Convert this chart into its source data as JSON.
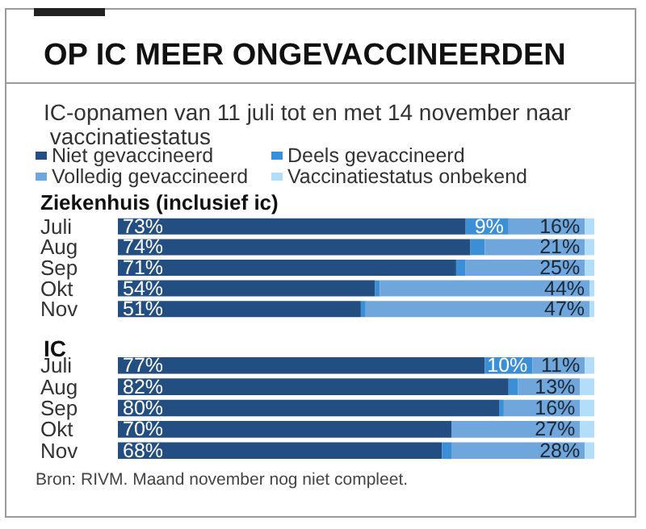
{
  "chart_data": [
    {
      "type": "bar",
      "title": "OP IC MEER ONGEVACCINEERDEN",
      "subtitle": "IC-opnamen van 11 juli tot en met 14 november naar vaccinatiestatus",
      "annotations": [
        "Ziekenhuis (inclusief ic)"
      ],
      "orientation": "horizontal",
      "stacked": true,
      "xlim": [
        0,
        100
      ],
      "tick_labels": "y",
      "grid": false,
      "legend": "top left",
      "categories": [
        "Juli",
        "Aug",
        "Sep",
        "Okt",
        "Nov"
      ],
      "series": [
        {
          "name": "Niet gevaccineerd",
          "color": "#234e82",
          "values": [
            73,
            74,
            71,
            54,
            51
          ],
          "value_labels": [
            "73%",
            "74%",
            "71%",
            "54%",
            "51%"
          ]
        },
        {
          "name": "Deels gevaccineerd",
          "color": "#3b8fd6",
          "values": [
            9,
            3,
            2,
            1,
            1
          ],
          "value_labels": [
            "9%",
            null,
            null,
            null,
            null
          ]
        },
        {
          "name": "Volledig gevaccineerd",
          "color": "#6fa6dc",
          "values": [
            16,
            21,
            25,
            44,
            47
          ],
          "value_labels": [
            "16%",
            "21%",
            "25%",
            "44%",
            "47%"
          ]
        },
        {
          "name": "Vaccinatiestatus onbekend",
          "color": "#b3defa",
          "values": [
            2,
            2,
            2,
            1,
            1
          ],
          "value_labels": [
            null,
            null,
            null,
            null,
            null
          ]
        }
      ]
    },
    {
      "type": "bar",
      "title": "IC",
      "annotations": [
        "Bron: RIVM. Maand november nog niet compleet."
      ],
      "orientation": "horizontal",
      "stacked": true,
      "xlim": [
        0,
        100
      ],
      "tick_labels": "y",
      "grid": false,
      "categories": [
        "Juli",
        "Aug",
        "Sep",
        "Okt",
        "Nov"
      ],
      "series": [
        {
          "color": "#234e82",
          "values": [
            77,
            82,
            80,
            70,
            68
          ],
          "value_labels": [
            "77%",
            "82%",
            "80%",
            "70%",
            "68%"
          ]
        },
        {
          "color": "#3b8fd6",
          "values": [
            10,
            2,
            1,
            0,
            2
          ],
          "value_labels": [
            "10%",
            null,
            null,
            null,
            null
          ]
        },
        {
          "color": "#6fa6dc",
          "values": [
            11,
            13,
            16,
            27,
            28
          ],
          "value_labels": [
            "11%",
            "13%",
            "16%",
            "27%",
            "28%"
          ]
        },
        {
          "color": "#b3defa",
          "values": [
            2,
            3,
            3,
            3,
            2
          ],
          "value_labels": [
            null,
            null,
            null,
            null,
            null
          ]
        }
      ]
    }
  ]
}
